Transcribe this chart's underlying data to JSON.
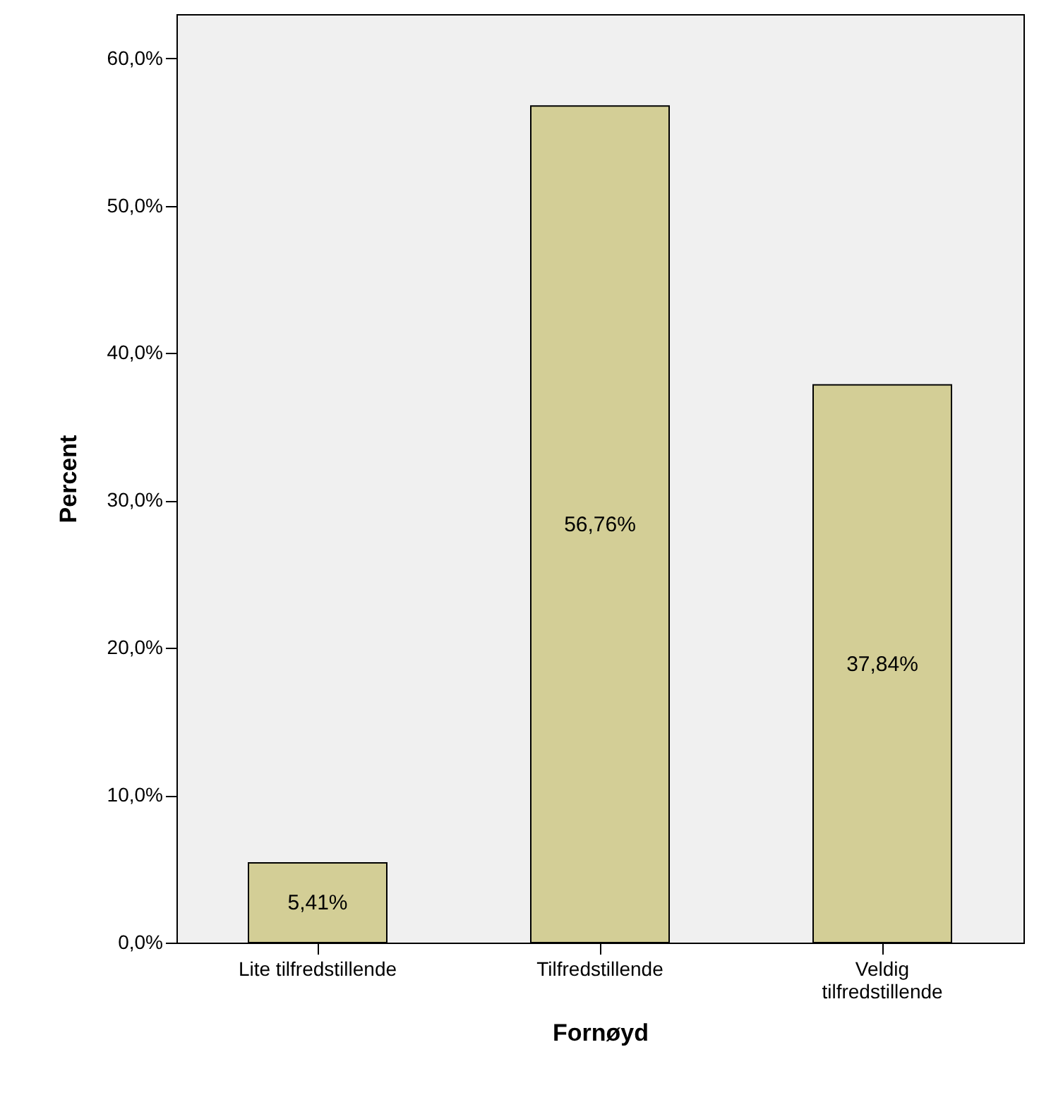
{
  "chart_data": {
    "type": "bar",
    "xlabel": "Fornøyd",
    "ylabel": "Percent",
    "categories": [
      "Lite tilfredstillende",
      "Tilfredstillende",
      "Veldig tilfredstillende"
    ],
    "values": [
      5.41,
      56.76,
      37.84
    ],
    "color": "#d3ce96",
    "value_labels": [
      "5,41%",
      "56,76%",
      "37,84%"
    ],
    "ylim": [
      0,
      63
    ],
    "yticks": [
      {
        "value": 0,
        "label": "0,0%"
      },
      {
        "value": 10,
        "label": "10,0%"
      },
      {
        "value": 20,
        "label": "20,0%"
      },
      {
        "value": 30,
        "label": "30,0%"
      },
      {
        "value": 40,
        "label": "40,0%"
      },
      {
        "value": 50,
        "label": "50,0%"
      },
      {
        "value": 60,
        "label": "60,0%"
      }
    ],
    "grid": false
  }
}
